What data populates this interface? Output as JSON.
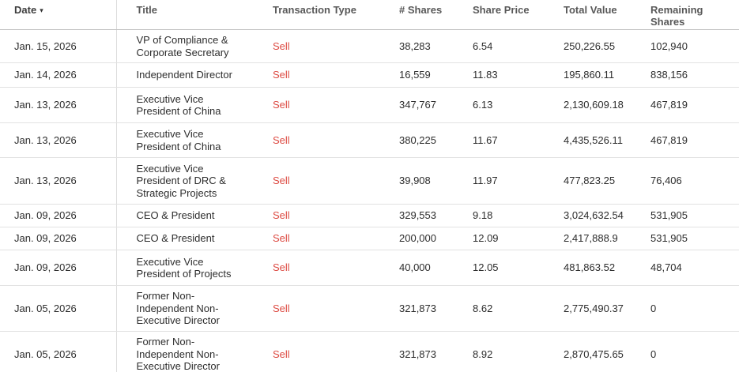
{
  "table": {
    "sort": {
      "column": "Date",
      "direction": "desc",
      "caret": "▾"
    },
    "columns": [
      {
        "key": "date",
        "label": "Date"
      },
      {
        "key": "title",
        "label": "Title"
      },
      {
        "key": "type",
        "label": "Transaction Type"
      },
      {
        "key": "shares",
        "label": "# Shares"
      },
      {
        "key": "price",
        "label": "Share Price"
      },
      {
        "key": "value",
        "label": "Total Value"
      },
      {
        "key": "remaining",
        "label": "Remaining Shares"
      }
    ],
    "colors": {
      "sell_text": "#dd4b43",
      "header_text": "#585858",
      "body_text": "#2d2d2d",
      "row_border": "#e2e2e2"
    },
    "rows": [
      {
        "date": "Jan. 15, 2026",
        "title": "VP of Compliance & Corporate Secretary",
        "type": "Sell",
        "shares": "38,283",
        "price": "6.54",
        "value": "250,226.55",
        "remaining": "102,940"
      },
      {
        "date": "Jan. 14, 2026",
        "title": "Independent Director",
        "type": "Sell",
        "shares": "16,559",
        "price": "11.83",
        "value": "195,860.11",
        "remaining": "838,156"
      },
      {
        "date": "Jan. 13, 2026",
        "title": "Executive Vice President of China",
        "type": "Sell",
        "shares": "347,767",
        "price": "6.13",
        "value": "2,130,609.18",
        "remaining": "467,819"
      },
      {
        "date": "Jan. 13, 2026",
        "title": "Executive Vice President of China",
        "type": "Sell",
        "shares": "380,225",
        "price": "11.67",
        "value": "4,435,526.11",
        "remaining": "467,819"
      },
      {
        "date": "Jan. 13, 2026",
        "title": "Executive Vice President of DRC & Strategic Projects",
        "type": "Sell",
        "shares": "39,908",
        "price": "11.97",
        "value": "477,823.25",
        "remaining": "76,406"
      },
      {
        "date": "Jan. 09, 2026",
        "title": "CEO & President",
        "type": "Sell",
        "shares": "329,553",
        "price": "9.18",
        "value": "3,024,632.54",
        "remaining": "531,905"
      },
      {
        "date": "Jan. 09, 2026",
        "title": "CEO & President",
        "type": "Sell",
        "shares": "200,000",
        "price": "12.09",
        "value": "2,417,888.9",
        "remaining": "531,905"
      },
      {
        "date": "Jan. 09, 2026",
        "title": "Executive Vice President of Projects",
        "type": "Sell",
        "shares": "40,000",
        "price": "12.05",
        "value": "481,863.52",
        "remaining": "48,704"
      },
      {
        "date": "Jan. 05, 2026",
        "title": "Former Non-Independent Non-Executive Director",
        "type": "Sell",
        "shares": "321,873",
        "price": "8.62",
        "value": "2,775,490.37",
        "remaining": "0"
      },
      {
        "date": "Jan. 05, 2026",
        "title": "Former Non-Independent Non-Executive Director",
        "type": "Sell",
        "shares": "321,873",
        "price": "8.92",
        "value": "2,870,475.65",
        "remaining": "0"
      }
    ]
  }
}
